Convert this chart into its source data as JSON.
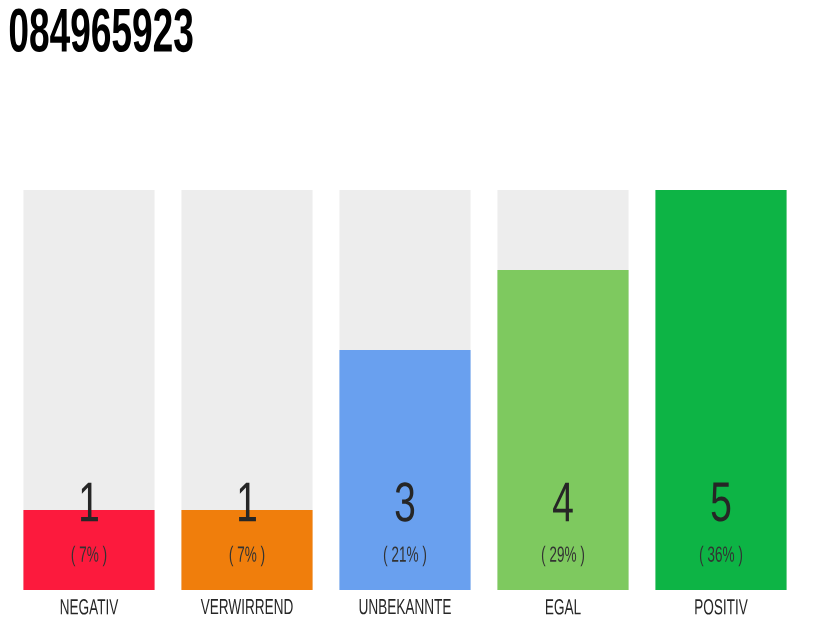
{
  "chart_data": {
    "type": "bar",
    "title": "084965923",
    "categories": [
      "NEGATIV",
      "VERWIRREND",
      "UNBEKANNTE",
      "EGAL",
      "POSITIV"
    ],
    "values": [
      1,
      1,
      3,
      4,
      5
    ],
    "colors": [
      "#fc1a3d",
      "#f07e0c",
      "#69a0ef",
      "#7ec95f",
      "#0db445"
    ],
    "ylim": [
      0,
      5
    ],
    "tick_labels": "x",
    "data_labels": true,
    "annotations": [
      "( 7% )",
      "( 7% )",
      "( 21% )",
      "( 29% )",
      "( 36% )"
    ]
  }
}
